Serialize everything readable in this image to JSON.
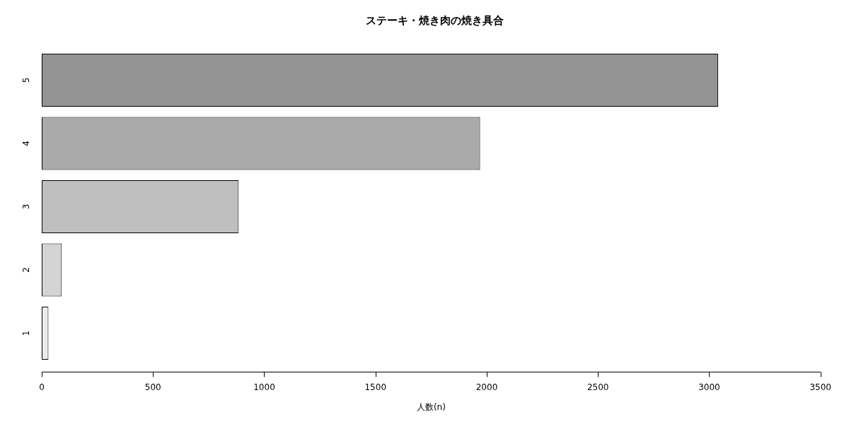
{
  "chart_data": {
    "type": "bar",
    "orientation": "horizontal",
    "title": "ステーキ・焼き肉の焼き具合",
    "xlabel": "人数(n)",
    "categories": [
      "5",
      "4",
      "3",
      "2",
      "1"
    ],
    "values": [
      3040,
      1970,
      885,
      90,
      30
    ],
    "colors": [
      "#949494",
      "#aaaaaa",
      "#bfbfbf",
      "#d4d4d4",
      "#ebebeb"
    ],
    "xlim": [
      0,
      3500
    ],
    "xticks": [
      0,
      500,
      1000,
      1500,
      2000,
      2500,
      3000,
      3500
    ]
  }
}
